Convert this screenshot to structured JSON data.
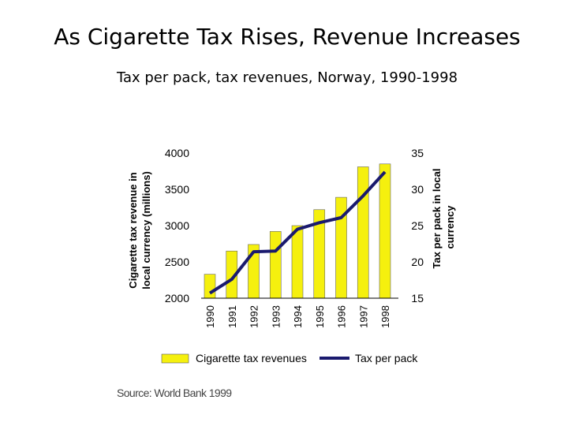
{
  "title": "As Cigarette Tax Rises, Revenue Increases",
  "subtitle": "Tax per pack, tax revenues,  Norway, 1990-1998",
  "source": "Source: World Bank 1999",
  "chart_data": {
    "type": "bar",
    "categories": [
      "1990",
      "1991",
      "1992",
      "1993",
      "1994",
      "1995",
      "1996",
      "1997",
      "1998"
    ],
    "series": [
      {
        "name": "Cigarette tax revenues",
        "type": "bar",
        "axis": "left",
        "color": "#f5f00e",
        "values": [
          2330,
          2650,
          2740,
          2920,
          3000,
          3220,
          3390,
          3810,
          3850
        ]
      },
      {
        "name": "Tax per pack",
        "type": "line",
        "axis": "right",
        "color": "#1a1a6e",
        "values": [
          15.7,
          17.6,
          21.4,
          21.5,
          24.5,
          25.4,
          26.1,
          29.1,
          32.4
        ]
      }
    ],
    "y_left": {
      "label": "Cigarette tax revenue in local currency (millions)",
      "ylim": [
        2000,
        4000
      ],
      "ticks": [
        "2000",
        "2500",
        "3000",
        "3500",
        "4000"
      ]
    },
    "y_right": {
      "label": "Tax per pack in local currency",
      "ylim": [
        15,
        35
      ],
      "ticks": [
        "15",
        "20",
        "25",
        "30",
        "35"
      ]
    },
    "grid": false,
    "legend_position": "bottom"
  }
}
